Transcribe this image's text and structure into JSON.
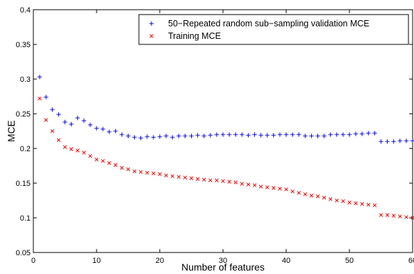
{
  "chart_data": {
    "type": "scatter",
    "title": "",
    "xlabel": "Number of features",
    "ylabel": "MCE",
    "xlim": [
      0,
      60
    ],
    "ylim": [
      0.05,
      0.4
    ],
    "xticks": [
      0,
      10,
      20,
      30,
      40,
      50,
      60
    ],
    "yticks": [
      0.05,
      0.1,
      0.15,
      0.2,
      0.25,
      0.3,
      0.35,
      0.4
    ],
    "grid": false,
    "legend_position": "top-right",
    "series": [
      {
        "name": "50−Repeated random sub−sampling validation MCE",
        "marker": "+",
        "color": "#0000ff",
        "x": [
          1,
          2,
          3,
          4,
          5,
          6,
          7,
          8,
          9,
          10,
          11,
          12,
          13,
          14,
          15,
          16,
          17,
          18,
          19,
          20,
          21,
          22,
          23,
          24,
          25,
          26,
          27,
          28,
          29,
          30,
          31,
          32,
          33,
          34,
          35,
          36,
          37,
          38,
          39,
          40,
          41,
          42,
          43,
          44,
          45,
          46,
          47,
          48,
          49,
          50,
          51,
          52,
          53,
          54,
          55,
          56,
          57,
          58,
          59,
          60
        ],
        "y": [
          0.303,
          0.274,
          0.256,
          0.249,
          0.238,
          0.235,
          0.244,
          0.24,
          0.234,
          0.229,
          0.228,
          0.224,
          0.225,
          0.22,
          0.218,
          0.216,
          0.215,
          0.217,
          0.216,
          0.217,
          0.218,
          0.216,
          0.218,
          0.218,
          0.218,
          0.219,
          0.218,
          0.219,
          0.22,
          0.22,
          0.22,
          0.22,
          0.22,
          0.219,
          0.22,
          0.219,
          0.219,
          0.219,
          0.22,
          0.22,
          0.22,
          0.22,
          0.218,
          0.218,
          0.218,
          0.218,
          0.22,
          0.22,
          0.22,
          0.22,
          0.221,
          0.221,
          0.222,
          0.222,
          0.21,
          0.21,
          0.21,
          0.211,
          0.211,
          0.211
        ]
      },
      {
        "name": "Training MCE",
        "marker": "x",
        "color": "#ff0000",
        "x": [
          1,
          2,
          3,
          4,
          5,
          6,
          7,
          8,
          9,
          10,
          11,
          12,
          13,
          14,
          15,
          16,
          17,
          18,
          19,
          20,
          21,
          22,
          23,
          24,
          25,
          26,
          27,
          28,
          29,
          30,
          31,
          32,
          33,
          34,
          35,
          36,
          37,
          38,
          39,
          40,
          41,
          42,
          43,
          44,
          45,
          46,
          47,
          48,
          49,
          50,
          51,
          52,
          53,
          54,
          55,
          56,
          57,
          58,
          59,
          60
        ],
        "y": [
          0.272,
          0.241,
          0.225,
          0.212,
          0.202,
          0.199,
          0.197,
          0.194,
          0.189,
          0.184,
          0.182,
          0.179,
          0.176,
          0.172,
          0.17,
          0.167,
          0.166,
          0.165,
          0.164,
          0.163,
          0.161,
          0.16,
          0.159,
          0.158,
          0.157,
          0.156,
          0.155,
          0.154,
          0.154,
          0.153,
          0.152,
          0.151,
          0.149,
          0.148,
          0.147,
          0.145,
          0.144,
          0.143,
          0.142,
          0.141,
          0.138,
          0.136,
          0.134,
          0.132,
          0.131,
          0.129,
          0.127,
          0.125,
          0.124,
          0.122,
          0.121,
          0.12,
          0.119,
          0.118,
          0.104,
          0.104,
          0.103,
          0.102,
          0.101,
          0.1
        ]
      }
    ]
  }
}
